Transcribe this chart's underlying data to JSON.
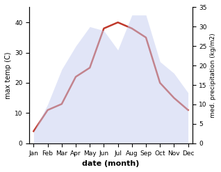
{
  "months": [
    "Jan",
    "Feb",
    "Mar",
    "Apr",
    "May",
    "Jun",
    "Jul",
    "Aug",
    "Sep",
    "Oct",
    "Nov",
    "Dec"
  ],
  "max_temp": [
    4,
    11,
    13,
    22,
    25,
    38,
    40,
    38,
    35,
    20,
    15,
    11
  ],
  "precipitation": [
    3,
    10,
    19,
    25,
    30,
    29,
    24,
    33,
    33,
    21,
    18,
    13
  ],
  "temp_color": "#c0392b",
  "precip_color": "#aab4e8",
  "precip_fill_color": "#c5cdf0",
  "temp_ylim": [
    0,
    45
  ],
  "precip_ylim": [
    0,
    35
  ],
  "temp_yticks": [
    0,
    10,
    20,
    30,
    40
  ],
  "precip_yticks": [
    0,
    5,
    10,
    15,
    20,
    25,
    30,
    35
  ],
  "xlabel": "date (month)",
  "ylabel_left": "max temp (C)",
  "ylabel_right": "med. precipitation (kg/m2)",
  "title": ""
}
